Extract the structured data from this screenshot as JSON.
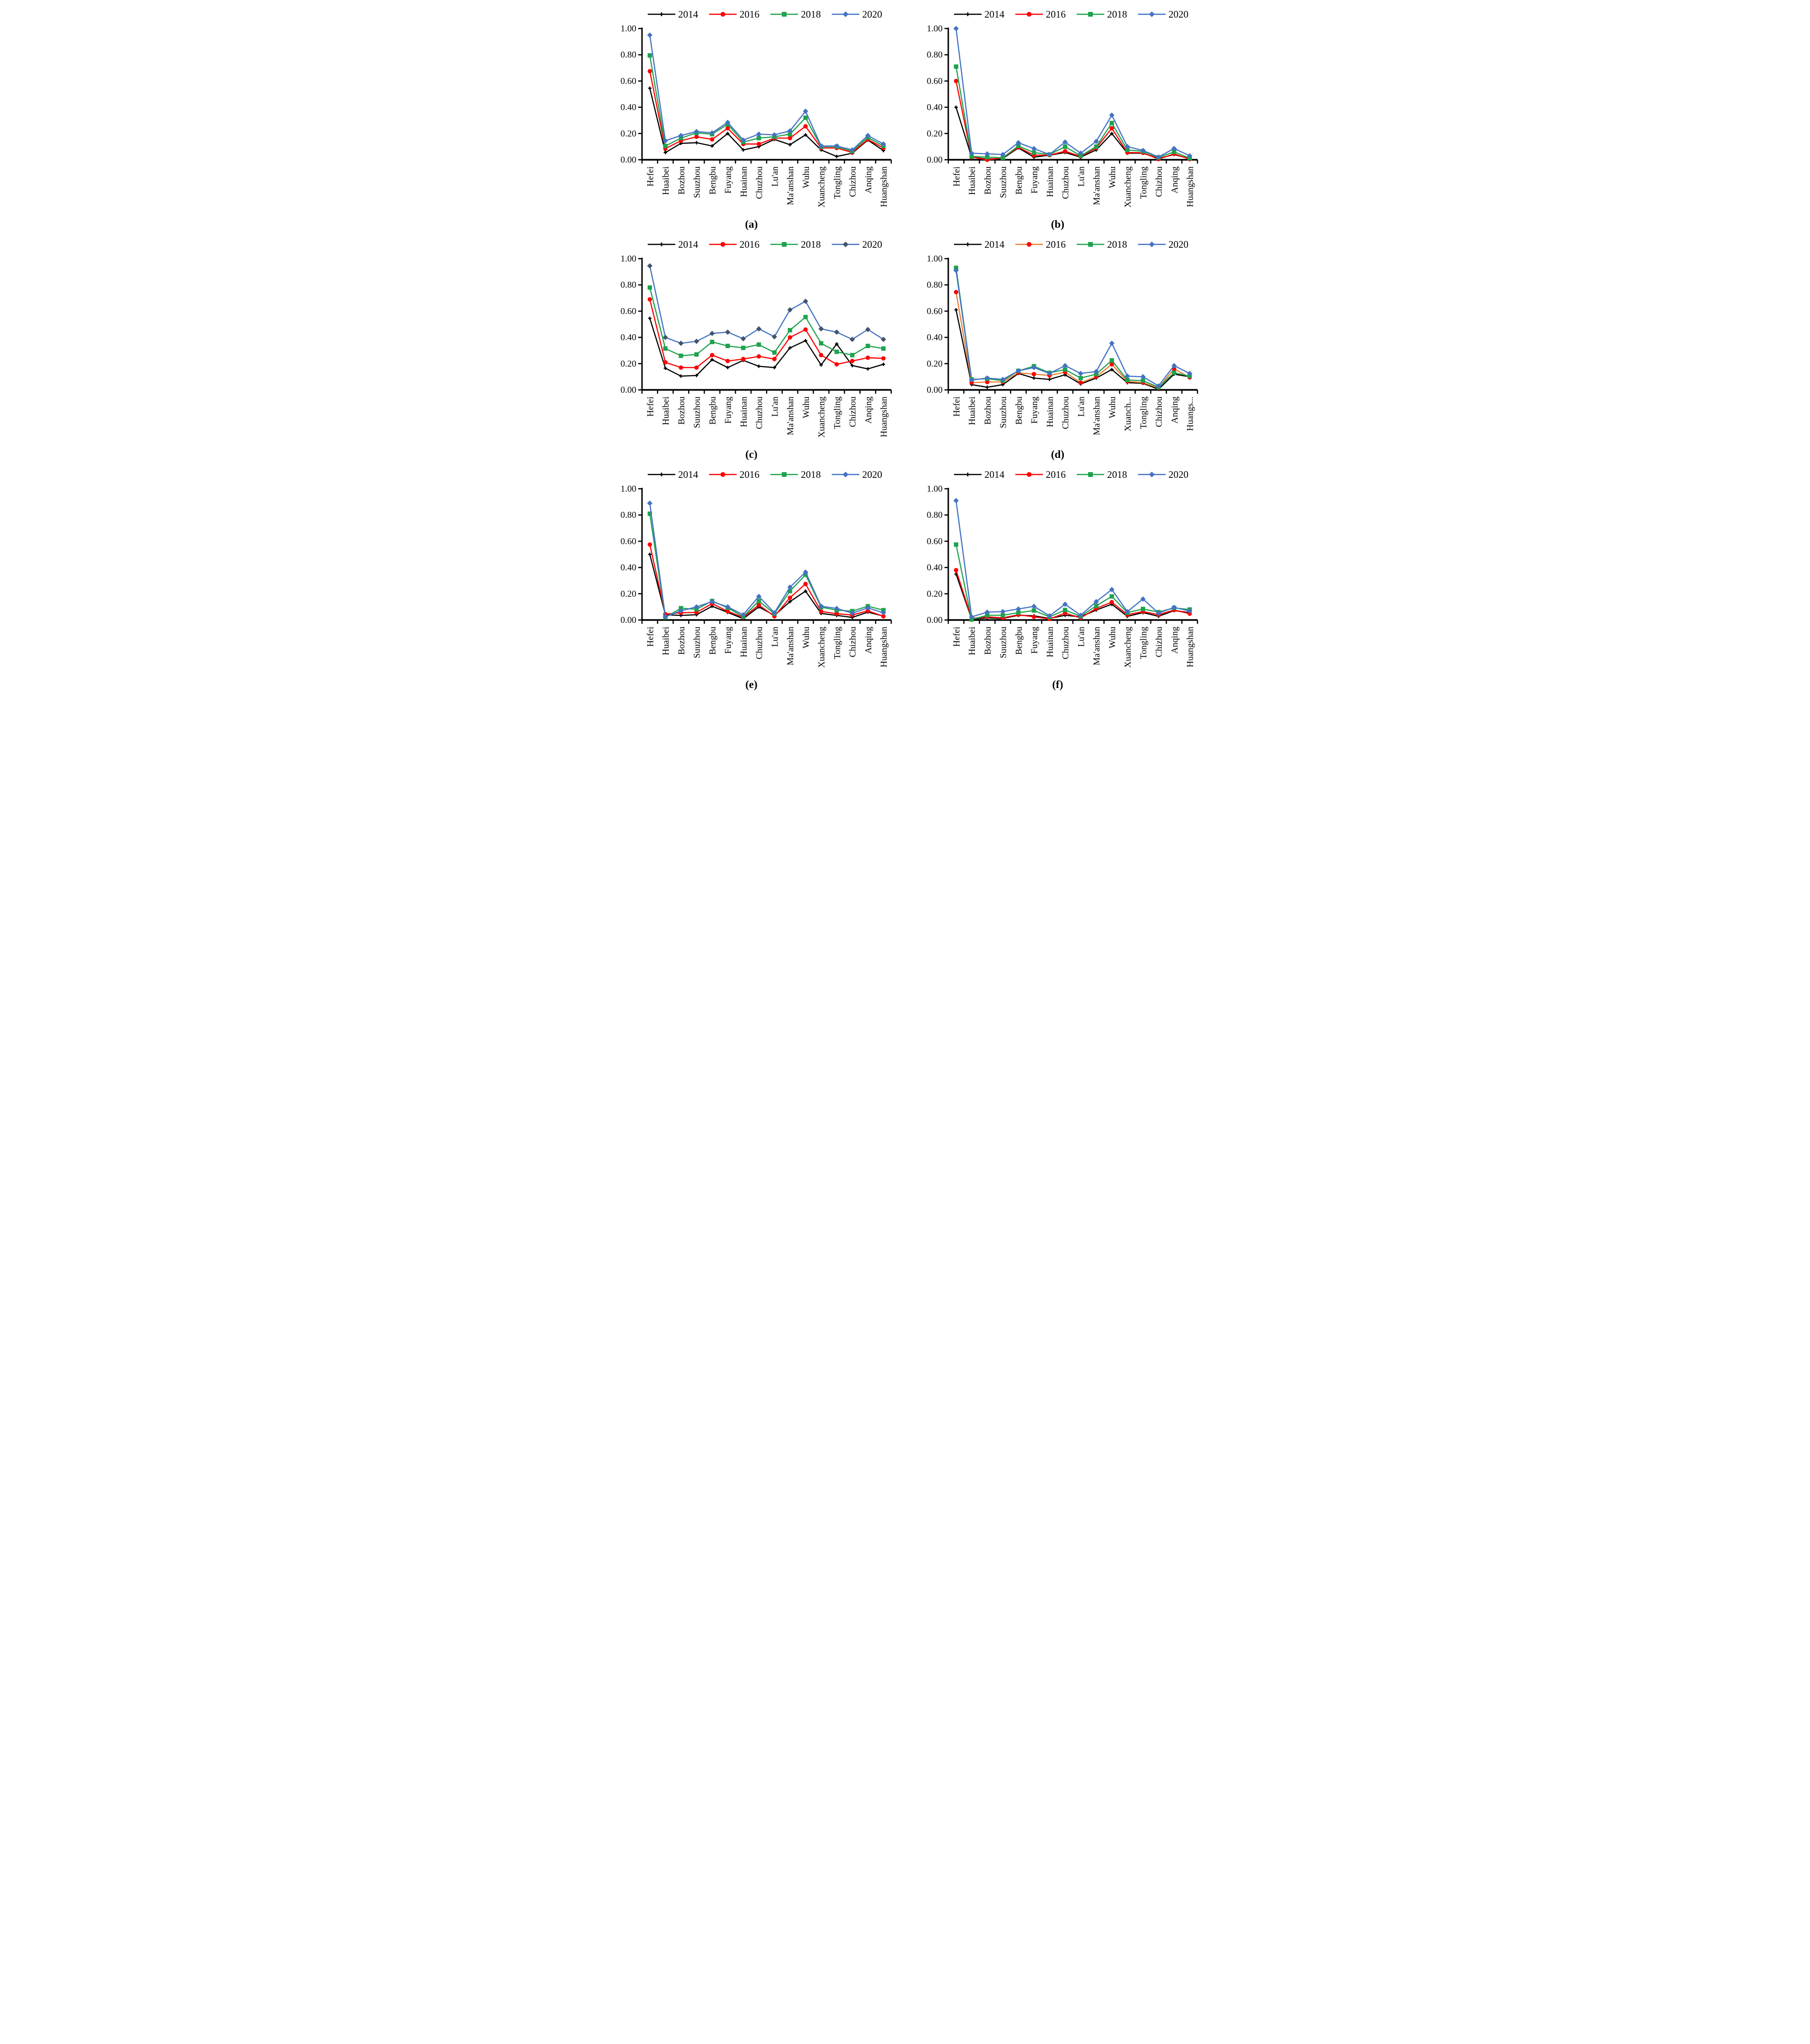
{
  "page": {
    "background": "#ffffff"
  },
  "colors": {
    "black": "#000000",
    "red": "#FF0000",
    "green": "#1FA24D",
    "blue": "#4472C4",
    "orange": "#ED7D31",
    "slate": "#44546A"
  },
  "chart_data": [
    {
      "id": "a",
      "caption": "(a)",
      "type": "line",
      "grid": false,
      "legend_position": "top",
      "ylim": [
        0,
        1.0
      ],
      "yticks": [
        "0.00",
        "0.20",
        "0.40",
        "0.60",
        "0.80",
        "1.00"
      ],
      "categories": [
        "Hefei",
        "Huaibei",
        "Bozhou",
        "Suuzhou",
        "Bengbu",
        "Fuyang",
        "Huainan",
        "Chuzhou",
        "Lu'an",
        "Ma'anshan",
        "Wuhu",
        "Xuancheng",
        "Tongling",
        "Chizhou",
        "Anqing",
        "Huangshan"
      ],
      "series": [
        {
          "name": "2014",
          "line_color": "#000000",
          "marker": "cross",
          "marker_color": "#000000",
          "values": [
            0.545,
            0.055,
            0.125,
            0.13,
            0.105,
            0.2,
            0.075,
            0.1,
            0.155,
            0.115,
            0.19,
            0.075,
            0.025,
            0.05,
            0.15,
            0.07
          ]
        },
        {
          "name": "2016",
          "line_color": "#FF0000",
          "marker": "circle",
          "marker_color": "#FF0000",
          "values": [
            0.675,
            0.085,
            0.145,
            0.175,
            0.155,
            0.24,
            0.12,
            0.12,
            0.165,
            0.165,
            0.255,
            0.09,
            0.09,
            0.055,
            0.155,
            0.09
          ]
        },
        {
          "name": "2018",
          "line_color": "#1FA24D",
          "marker": "square",
          "marker_color": "#1FA24D",
          "values": [
            0.795,
            0.105,
            0.165,
            0.205,
            0.195,
            0.27,
            0.135,
            0.165,
            0.175,
            0.195,
            0.32,
            0.1,
            0.1,
            0.065,
            0.17,
            0.105
          ]
        },
        {
          "name": "2020",
          "line_color": "#4472C4",
          "marker": "diamond",
          "marker_color": "#4472C4",
          "values": [
            0.95,
            0.145,
            0.185,
            0.215,
            0.205,
            0.285,
            0.15,
            0.195,
            0.19,
            0.22,
            0.37,
            0.105,
            0.105,
            0.075,
            0.185,
            0.12
          ]
        }
      ]
    },
    {
      "id": "b",
      "caption": "(b)",
      "type": "line",
      "grid": false,
      "legend_position": "top",
      "ylim": [
        0,
        1.0
      ],
      "yticks": [
        "0.00",
        "0.20",
        "0.40",
        "0.60",
        "0.80",
        "1.00"
      ],
      "categories": [
        "Hefei",
        "Huaibei",
        "Bozhou",
        "Suuzhou",
        "Bengbu",
        "Fuyang",
        "Huainan",
        "Chuzhou",
        "Lu'an",
        "Ma'anshan",
        "Wuhu",
        "Xuancheng",
        "Tongling",
        "Chizhou",
        "Anqing",
        "Huangshan"
      ],
      "series": [
        {
          "name": "2014",
          "line_color": "#000000",
          "marker": "cross",
          "marker_color": "#000000",
          "values": [
            0.4,
            0.02,
            0.005,
            0.01,
            0.09,
            0.02,
            0.035,
            0.055,
            0.02,
            0.075,
            0.2,
            0.05,
            0.05,
            0.01,
            0.04,
            0.008
          ]
        },
        {
          "name": "2016",
          "line_color": "#FF0000",
          "marker": "circle",
          "marker_color": "#FF0000",
          "values": [
            0.6,
            0.02,
            0.0,
            0.015,
            0.095,
            0.035,
            0.035,
            0.065,
            0.025,
            0.09,
            0.24,
            0.055,
            0.053,
            0.005,
            0.045,
            0.005
          ]
        },
        {
          "name": "2018",
          "line_color": "#1FA24D",
          "marker": "square",
          "marker_color": "#1FA24D",
          "values": [
            0.71,
            0.025,
            0.02,
            0.015,
            0.105,
            0.055,
            0.04,
            0.1,
            0.03,
            0.1,
            0.28,
            0.075,
            0.064,
            0.018,
            0.06,
            0.012
          ]
        },
        {
          "name": "2020",
          "line_color": "#4472C4",
          "marker": "diamond",
          "marker_color": "#4472C4",
          "values": [
            1.0,
            0.05,
            0.045,
            0.04,
            0.13,
            0.085,
            0.04,
            0.135,
            0.05,
            0.14,
            0.34,
            0.1,
            0.071,
            0.021,
            0.086,
            0.03
          ]
        }
      ]
    },
    {
      "id": "c",
      "caption": "(c)",
      "type": "line",
      "grid": false,
      "legend_position": "top",
      "ylim": [
        0,
        1.0
      ],
      "yticks": [
        "0.00",
        "0.20",
        "0.40",
        "0.60",
        "0.80",
        "1.00"
      ],
      "categories": [
        "Hefei",
        "Huaibei",
        "Bozhou",
        "Suuzhou",
        "Bengbu",
        "Fuyang",
        "Huainan",
        "Chuzhou",
        "Lu'an",
        "Ma'anshan",
        "Wuhu",
        "Xuancheng",
        "Tongling",
        "Chizhou",
        "Anqing",
        "Huangshan"
      ],
      "series": [
        {
          "name": "2014",
          "line_color": "#000000",
          "marker": "cross",
          "marker_color": "#000000",
          "values": [
            0.545,
            0.165,
            0.105,
            0.11,
            0.23,
            0.17,
            0.225,
            0.18,
            0.17,
            0.32,
            0.375,
            0.19,
            0.35,
            0.185,
            0.16,
            0.195
          ]
        },
        {
          "name": "2016",
          "line_color": "#FF0000",
          "marker": "circle",
          "marker_color": "#FF0000",
          "values": [
            0.69,
            0.21,
            0.17,
            0.17,
            0.265,
            0.22,
            0.235,
            0.255,
            0.235,
            0.4,
            0.46,
            0.265,
            0.195,
            0.22,
            0.245,
            0.24
          ]
        },
        {
          "name": "2018",
          "line_color": "#1FA24D",
          "marker": "square",
          "marker_color": "#1FA24D",
          "values": [
            0.78,
            0.315,
            0.26,
            0.27,
            0.365,
            0.335,
            0.32,
            0.345,
            0.285,
            0.455,
            0.555,
            0.355,
            0.29,
            0.265,
            0.335,
            0.315
          ]
        },
        {
          "name": "2020",
          "line_color": "#4472C4",
          "marker": "diamond",
          "marker_color": "#44546A",
          "values": [
            0.945,
            0.4,
            0.355,
            0.37,
            0.43,
            0.44,
            0.39,
            0.465,
            0.405,
            0.61,
            0.675,
            0.465,
            0.44,
            0.385,
            0.46,
            0.385
          ]
        }
      ]
    },
    {
      "id": "d",
      "caption": "(d)",
      "type": "line",
      "grid": false,
      "legend_position": "top",
      "ylim": [
        0,
        1.0
      ],
      "yticks": [
        "0.00",
        "0.20",
        "0.40",
        "0.60",
        "0.80",
        "1.00"
      ],
      "categories": [
        "Hefei",
        "Huaibei",
        "Bozhou",
        "Suuzhou",
        "Bengbu",
        "Fuyang",
        "Huainan",
        "Chuzhou",
        "Lu'an",
        "Ma'anshan",
        "Wuhu",
        "Xuanch...",
        "Tongling",
        "Chizhou",
        "Anqing",
        "Huangs..."
      ],
      "series": [
        {
          "name": "2014",
          "line_color": "#000000",
          "marker": "cross",
          "marker_color": "#000000",
          "values": [
            0.61,
            0.04,
            0.02,
            0.04,
            0.125,
            0.09,
            0.08,
            0.115,
            0.045,
            0.09,
            0.155,
            0.055,
            0.05,
            0.005,
            0.12,
            0.1
          ]
        },
        {
          "name": "2016",
          "line_color": "#ED7D31",
          "marker": "circle",
          "marker_color": "#FF0000",
          "values": [
            0.745,
            0.055,
            0.06,
            0.06,
            0.13,
            0.12,
            0.11,
            0.135,
            0.055,
            0.1,
            0.195,
            0.065,
            0.055,
            0.015,
            0.16,
            0.095
          ]
        },
        {
          "name": "2018",
          "line_color": "#1FA24D",
          "marker": "square",
          "marker_color": "#1FA24D",
          "values": [
            0.93,
            0.08,
            0.085,
            0.07,
            0.145,
            0.18,
            0.13,
            0.155,
            0.09,
            0.12,
            0.225,
            0.075,
            0.07,
            0.02,
            0.13,
            0.105
          ]
        },
        {
          "name": "2020",
          "line_color": "#4472C4",
          "marker": "diamond",
          "marker_color": "#4472C4",
          "values": [
            0.91,
            0.075,
            0.09,
            0.08,
            0.145,
            0.17,
            0.125,
            0.185,
            0.125,
            0.14,
            0.355,
            0.105,
            0.1,
            0.03,
            0.185,
            0.125
          ]
        }
      ]
    },
    {
      "id": "e",
      "caption": "(e)",
      "type": "line",
      "grid": false,
      "legend_position": "top",
      "ylim": [
        0,
        1.0
      ],
      "yticks": [
        "0.00",
        "0.20",
        "0.40",
        "0.60",
        "0.80",
        "1.00"
      ],
      "categories": [
        "Hefei",
        "Huaibei",
        "Bozhou",
        "Suuzhou",
        "Bengbu",
        "Fuyang",
        "Huainan",
        "Chuzhou",
        "Lu'an",
        "Ma'anshan",
        "Wuhu",
        "Xuancheng",
        "Tongling",
        "Chizhou",
        "Anqing",
        "Huangshan"
      ],
      "series": [
        {
          "name": "2014",
          "line_color": "#000000",
          "marker": "cross",
          "marker_color": "#000000",
          "values": [
            0.5,
            0.04,
            0.035,
            0.04,
            0.105,
            0.058,
            0.01,
            0.1,
            0.035,
            0.14,
            0.22,
            0.05,
            0.035,
            0.02,
            0.06,
            0.03
          ]
        },
        {
          "name": "2016",
          "line_color": "#FF0000",
          "marker": "circle",
          "marker_color": "#FF0000",
          "values": [
            0.575,
            0.045,
            0.055,
            0.058,
            0.125,
            0.066,
            0.02,
            0.115,
            0.028,
            0.17,
            0.275,
            0.065,
            0.048,
            0.038,
            0.07,
            0.028
          ]
        },
        {
          "name": "2018",
          "line_color": "#1FA24D",
          "marker": "square",
          "marker_color": "#1FA24D",
          "values": [
            0.81,
            0.02,
            0.09,
            0.082,
            0.145,
            0.093,
            0.025,
            0.145,
            0.048,
            0.22,
            0.345,
            0.098,
            0.075,
            0.068,
            0.105,
            0.075
          ]
        },
        {
          "name": "2020",
          "line_color": "#4472C4",
          "marker": "diamond",
          "marker_color": "#4472C4",
          "values": [
            0.89,
            0.025,
            0.07,
            0.1,
            0.14,
            0.1,
            0.04,
            0.18,
            0.055,
            0.25,
            0.365,
            0.105,
            0.088,
            0.052,
            0.092,
            0.055
          ]
        }
      ]
    },
    {
      "id": "f",
      "caption": "(f)",
      "type": "line",
      "grid": false,
      "legend_position": "top",
      "ylim": [
        0,
        1.0
      ],
      "yticks": [
        "0.00",
        "0.20",
        "0.40",
        "0.60",
        "0.80",
        "1.00"
      ],
      "categories": [
        "Hefei",
        "Huaibei",
        "Bozhou",
        "Suuzhou",
        "Bengbu",
        "Fuyang",
        "Huainan",
        "Chuzhou",
        "Lu'an",
        "Ma'anshan",
        "Wuhu",
        "Xuancheng",
        "Tongling",
        "Chizhou",
        "Anqing",
        "Huangshan"
      ],
      "series": [
        {
          "name": "2014",
          "line_color": "#000000",
          "marker": "cross",
          "marker_color": "#000000",
          "values": [
            0.35,
            0.008,
            0.016,
            0.012,
            0.036,
            0.032,
            0.012,
            0.036,
            0.024,
            0.076,
            0.12,
            0.028,
            0.056,
            0.028,
            0.072,
            0.056
          ]
        },
        {
          "name": "2016",
          "line_color": "#FF0000",
          "marker": "circle",
          "marker_color": "#FF0000",
          "values": [
            0.38,
            0.012,
            0.024,
            0.016,
            0.04,
            0.024,
            0.008,
            0.052,
            0.016,
            0.088,
            0.136,
            0.04,
            0.064,
            0.04,
            0.076,
            0.048
          ]
        },
        {
          "name": "2018",
          "line_color": "#1FA24D",
          "marker": "square",
          "marker_color": "#1FA24D",
          "values": [
            0.575,
            0.004,
            0.036,
            0.036,
            0.056,
            0.072,
            0.024,
            0.076,
            0.028,
            0.108,
            0.18,
            0.056,
            0.084,
            0.06,
            0.092,
            0.08
          ]
        },
        {
          "name": "2020",
          "line_color": "#4472C4",
          "marker": "diamond",
          "marker_color": "#4472C4",
          "values": [
            0.91,
            0.024,
            0.06,
            0.064,
            0.084,
            0.104,
            0.032,
            0.12,
            0.036,
            0.14,
            0.232,
            0.064,
            0.16,
            0.052,
            0.096,
            0.068
          ]
        }
      ]
    }
  ]
}
